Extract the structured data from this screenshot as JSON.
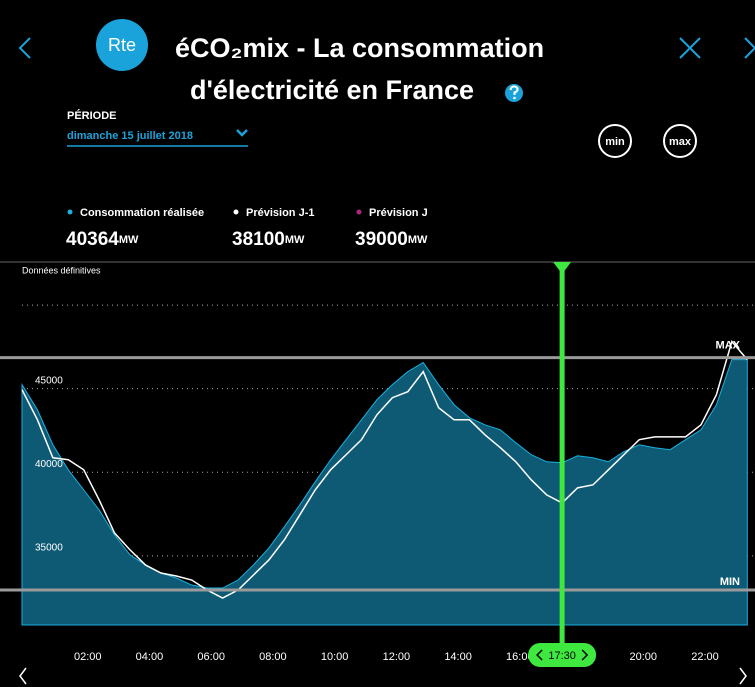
{
  "header": {
    "logo": "Rte",
    "title_line1": "éCO₂mix - La consommation",
    "title_line2": "d'électricité en France"
  },
  "period": {
    "label": "PÉRIODE",
    "value": "dimanche 15 juillet 2018"
  },
  "buttons": [
    "min",
    "max"
  ],
  "chart_data": {
    "type": "area",
    "note": "Données définitives",
    "unit": "MW",
    "x": [
      0,
      0.5,
      1,
      1.5,
      2,
      2.5,
      3,
      3.5,
      4,
      4.5,
      5,
      5.5,
      6,
      6.5,
      7,
      7.5,
      8,
      8.5,
      9,
      9.5,
      10,
      10.5,
      11,
      11.5,
      12,
      12.5,
      13,
      13.5,
      14,
      14.5,
      15,
      15.5,
      16,
      16.5,
      17,
      17.5,
      18,
      18.5,
      19,
      19.5,
      20,
      20.5,
      21,
      21.5,
      22,
      22.5,
      23,
      23.5
    ],
    "series": [
      {
        "name": "Consommation réalisée",
        "color": "#1ab0e0",
        "fill": "#0e5a74",
        "current": 40364,
        "values": [
          45240,
          43740,
          41650,
          40150,
          38950,
          37750,
          36250,
          35060,
          34460,
          33980,
          33680,
          33260,
          33080,
          33080,
          33560,
          34460,
          35480,
          36740,
          38050,
          39430,
          40750,
          41950,
          43140,
          44340,
          45240,
          46020,
          46560,
          45240,
          44040,
          43260,
          42840,
          42540,
          41770,
          41050,
          40630,
          40570,
          40990,
          40870,
          40630,
          41230,
          41650,
          41470,
          41350,
          41950,
          42540,
          44040,
          46740,
          46740
        ]
      },
      {
        "name": "Prévision J-1",
        "color": "#ffffff",
        "current": 38100,
        "values": [
          44940,
          43140,
          40870,
          40750,
          40150,
          38350,
          36370,
          35360,
          34460,
          33980,
          33800,
          33560,
          32960,
          32480,
          32960,
          33860,
          34760,
          35960,
          37450,
          38950,
          40150,
          41050,
          41950,
          43440,
          44460,
          44820,
          46020,
          43860,
          43140,
          43140,
          42240,
          41470,
          40630,
          39550,
          38650,
          38170,
          39070,
          39250,
          40150,
          41050,
          41950,
          42120,
          42120,
          42120,
          42840,
          44640,
          47820,
          46740
        ]
      },
      {
        "name": "Prévision J",
        "color": "#b0277a",
        "current": 39000
      }
    ],
    "xlim": [
      0,
      23.75
    ],
    "xticks": [
      {
        "value": 2,
        "label": "02:00"
      },
      {
        "value": 4,
        "label": "04:00"
      },
      {
        "value": 6,
        "label": "06:00"
      },
      {
        "value": 8,
        "label": "08:00"
      },
      {
        "value": 10,
        "label": "10:00"
      },
      {
        "value": 12,
        "label": "12:00"
      },
      {
        "value": 14,
        "label": "14:00"
      },
      {
        "value": 16,
        "label": "16:00"
      },
      {
        "value": 20,
        "label": "20:00"
      },
      {
        "value": 22,
        "label": "22:00"
      }
    ],
    "ylim": [
      30870,
      52575
    ],
    "yticks": [
      35000,
      40000,
      45000
    ],
    "gridlines": [
      35000,
      40000,
      45000,
      50000
    ],
    "max_line": {
      "value": 46860,
      "label": "MAX"
    },
    "min_line": {
      "value": 32960,
      "label": "MIN"
    },
    "cursor": {
      "x": 17.5,
      "label": "17:30",
      "color": "#3ee83e"
    }
  }
}
